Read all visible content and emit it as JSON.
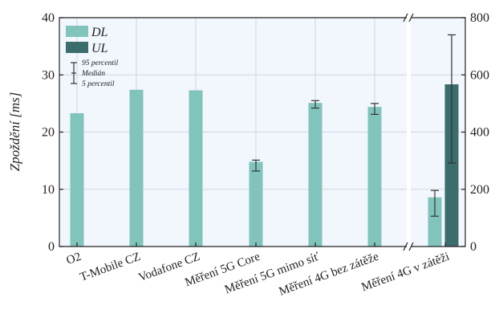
{
  "chart_data": {
    "type": "bar",
    "ylabel": "Zpoždění [ms]",
    "left_axis": {
      "ylim": [
        0,
        40
      ],
      "ticks": [
        0,
        10,
        20,
        30,
        40
      ]
    },
    "right_axis": {
      "ylim": [
        0,
        800
      ],
      "ticks": [
        0,
        200,
        400,
        600,
        800
      ]
    },
    "grid": true,
    "legend": {
      "placement": "top-left",
      "entries": [
        "DL",
        "UL"
      ],
      "errorbar_key": [
        "95 percentil",
        "Medián",
        "5 percentil"
      ]
    },
    "colors": {
      "DL": "#80c4bb",
      "UL": "#3b6d6c",
      "plot_bg": "#f2f6fd",
      "frame": "#222222"
    },
    "categories": [
      "O2",
      "T-Mobile CZ",
      "Vodafone CZ",
      "Měření 5G Core",
      "Měření 5G mimo síť",
      "Měření 4G bez zátěže",
      "Měření 4G v zátěži"
    ],
    "series": [
      {
        "name": "DL",
        "axis": "left",
        "values": [
          23.3,
          27.4,
          27.3,
          14.8,
          25.1,
          24.4,
          8.6
        ],
        "err_low": [
          null,
          null,
          null,
          13.2,
          24.2,
          23.1,
          5.3
        ],
        "err_high": [
          null,
          null,
          null,
          15.1,
          25.5,
          25.0,
          9.8
        ]
      },
      {
        "name": "UL",
        "axis": "right",
        "values": [
          null,
          null,
          null,
          null,
          null,
          null,
          567
        ],
        "err_low": [
          null,
          null,
          null,
          null,
          null,
          null,
          292
        ],
        "err_high": [
          null,
          null,
          null,
          null,
          null,
          null,
          740
        ]
      }
    ]
  }
}
